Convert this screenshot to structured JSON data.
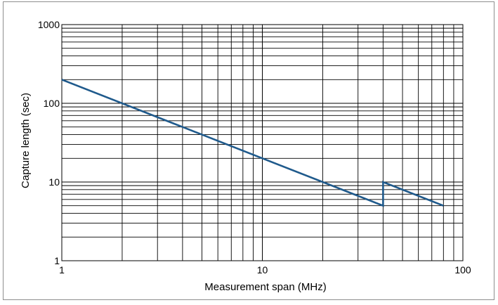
{
  "chart_data": {
    "type": "line",
    "x_scale": "log",
    "y_scale": "log",
    "xlim": [
      1,
      100
    ],
    "ylim": [
      1,
      1000
    ],
    "grid": true,
    "xlabel": "Measurement span (MHz)",
    "ylabel": "Capture length (sec)",
    "x_tick_labels": [
      "1",
      "10",
      "100"
    ],
    "y_tick_labels": [
      "1",
      "10",
      "100",
      "1000"
    ],
    "series": [
      {
        "color": "#1f5a8c",
        "points": [
          {
            "x": 1,
            "y": 200
          },
          {
            "x": 40,
            "y": 5
          },
          {
            "x": 40,
            "y": 10
          },
          {
            "x": 80,
            "y": 5
          }
        ]
      }
    ]
  }
}
